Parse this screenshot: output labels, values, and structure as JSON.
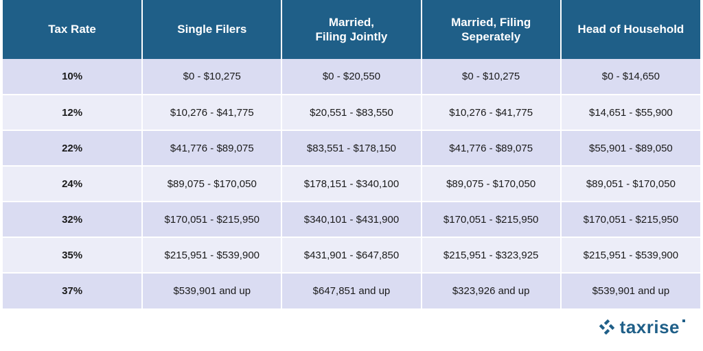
{
  "styling": {
    "header_bg": "#1f5f88",
    "row_odd_bg": "#dadcf2",
    "row_even_bg": "#ecedf8",
    "text_color": "#1a1a1a",
    "logo_color": "#1f5f88",
    "header_fontsize": 17,
    "body_fontsize": 15,
    "col_widths_pct": [
      20,
      20,
      20,
      20,
      20
    ]
  },
  "table": {
    "columns": [
      "Tax Rate",
      "Single Filers",
      "Married,\nFiling Jointly",
      "Married, Filing\nSeperately",
      "Head of Household"
    ],
    "rows": [
      [
        "10%",
        "$0 - $10,275",
        "$0 - $20,550",
        "$0 - $10,275",
        "$0 - $14,650"
      ],
      [
        "12%",
        "$10,276 - $41,775",
        "$20,551 - $83,550",
        "$10,276 - $41,775",
        "$14,651 - $55,900"
      ],
      [
        "22%",
        "$41,776 - $89,075",
        "$83,551 - $178,150",
        "$41,776 - $89,075",
        "$55,901 - $89,050"
      ],
      [
        "24%",
        "$89,075 - $170,050",
        "$178,151 - $340,100",
        "$89,075 - $170,050",
        "$89,051 - $170,050"
      ],
      [
        "32%",
        "$170,051 - $215,950",
        "$340,101 - $431,900",
        "$170,051 - $215,950",
        "$170,051 - $215,950"
      ],
      [
        "35%",
        "$215,951 - $539,900",
        "$431,901 - $647,850",
        "$215,951 - $323,925",
        "$215,951 - $539,900"
      ],
      [
        "37%",
        "$539,901 and up",
        "$647,851 and up",
        "$323,926 and up",
        "$539,901 and up"
      ]
    ]
  },
  "brand": {
    "name": "taxrise"
  }
}
